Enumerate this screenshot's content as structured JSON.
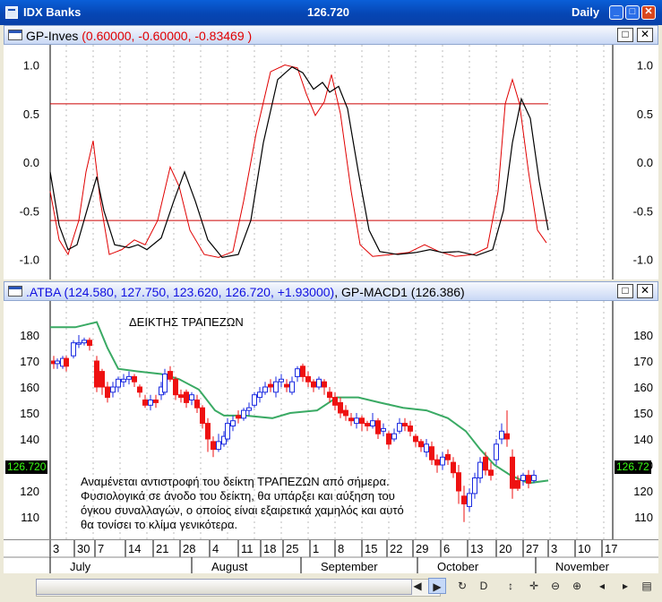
{
  "window": {
    "title": "IDX Banks",
    "price": "126.720",
    "period": "Daily",
    "minimize": "_",
    "maximize": "□",
    "close": "✕"
  },
  "pane1": {
    "title": "GP-Inves",
    "values": "(0.60000, -0.60000, -0.83469 )",
    "yticks": [
      "1.0",
      "0.5",
      "0.0",
      "-0.5",
      "-1.0"
    ],
    "max_btn": "□",
    "close_btn": "✕"
  },
  "pane2": {
    "title": ".ATBA",
    "values": "(124.580, 127.750, 123.620, 126.720, +1.93000)",
    "sep": ",",
    "indicator": "GP-MACD1",
    "indicator_value": "(126.386)",
    "yticks": [
      "180",
      "170",
      "160",
      "150",
      "140",
      "130",
      "120",
      "110"
    ],
    "price_tag": "126.720",
    "price_tag_right": "126.72",
    "annotation_title": "ΔΕΙΚΤΗΣ ΤΡΑΠΕΖΩΝ",
    "annotation_body": [
      "Αναμένεται αντιστροφή του δείκτη ΤΡΑΠΕΖΩΝ από σήμερα.",
      "Φυσιολογικά σε άνοδο του δείκτη, θα υπάρξει και αύξηση του",
      "όγκου συναλλαγών, ο οποίος είναι εξαιρετικά χαμηλός και αυτό",
      "θα τονίσει το κλίμα γενικότερα."
    ],
    "max_btn": "□",
    "close_btn": "✕"
  },
  "xaxis": {
    "days": [
      "3",
      "30",
      "7",
      "14",
      "21",
      "28",
      "4",
      "11",
      "18",
      "25",
      "1",
      "8",
      "15",
      "22",
      "29",
      "6",
      "13",
      "20",
      "27",
      "3",
      "10",
      "17"
    ],
    "months": [
      "July",
      "August",
      "September",
      "October",
      "November"
    ]
  },
  "toolbar": {
    "icons": [
      "chevron-left-icon",
      "chevron-right-icon",
      "refresh-icon",
      "d-icon",
      "updown-icon",
      "move-icon",
      "zoom-out-icon",
      "zoom-in-icon",
      "prev-icon",
      "next-icon",
      "grid-icon"
    ],
    "labels": [
      "◀",
      "▶",
      "↻",
      "D",
      "↕",
      "✛",
      "⊖",
      "⊕",
      "◂",
      "▸",
      "▤"
    ]
  },
  "colors": {
    "line_black": "#000000",
    "line_red": "#e00000",
    "threshold": "#cc0000",
    "ma": "#3aaa64",
    "up": "#1a2ae0",
    "down": "#ee1111"
  }
}
